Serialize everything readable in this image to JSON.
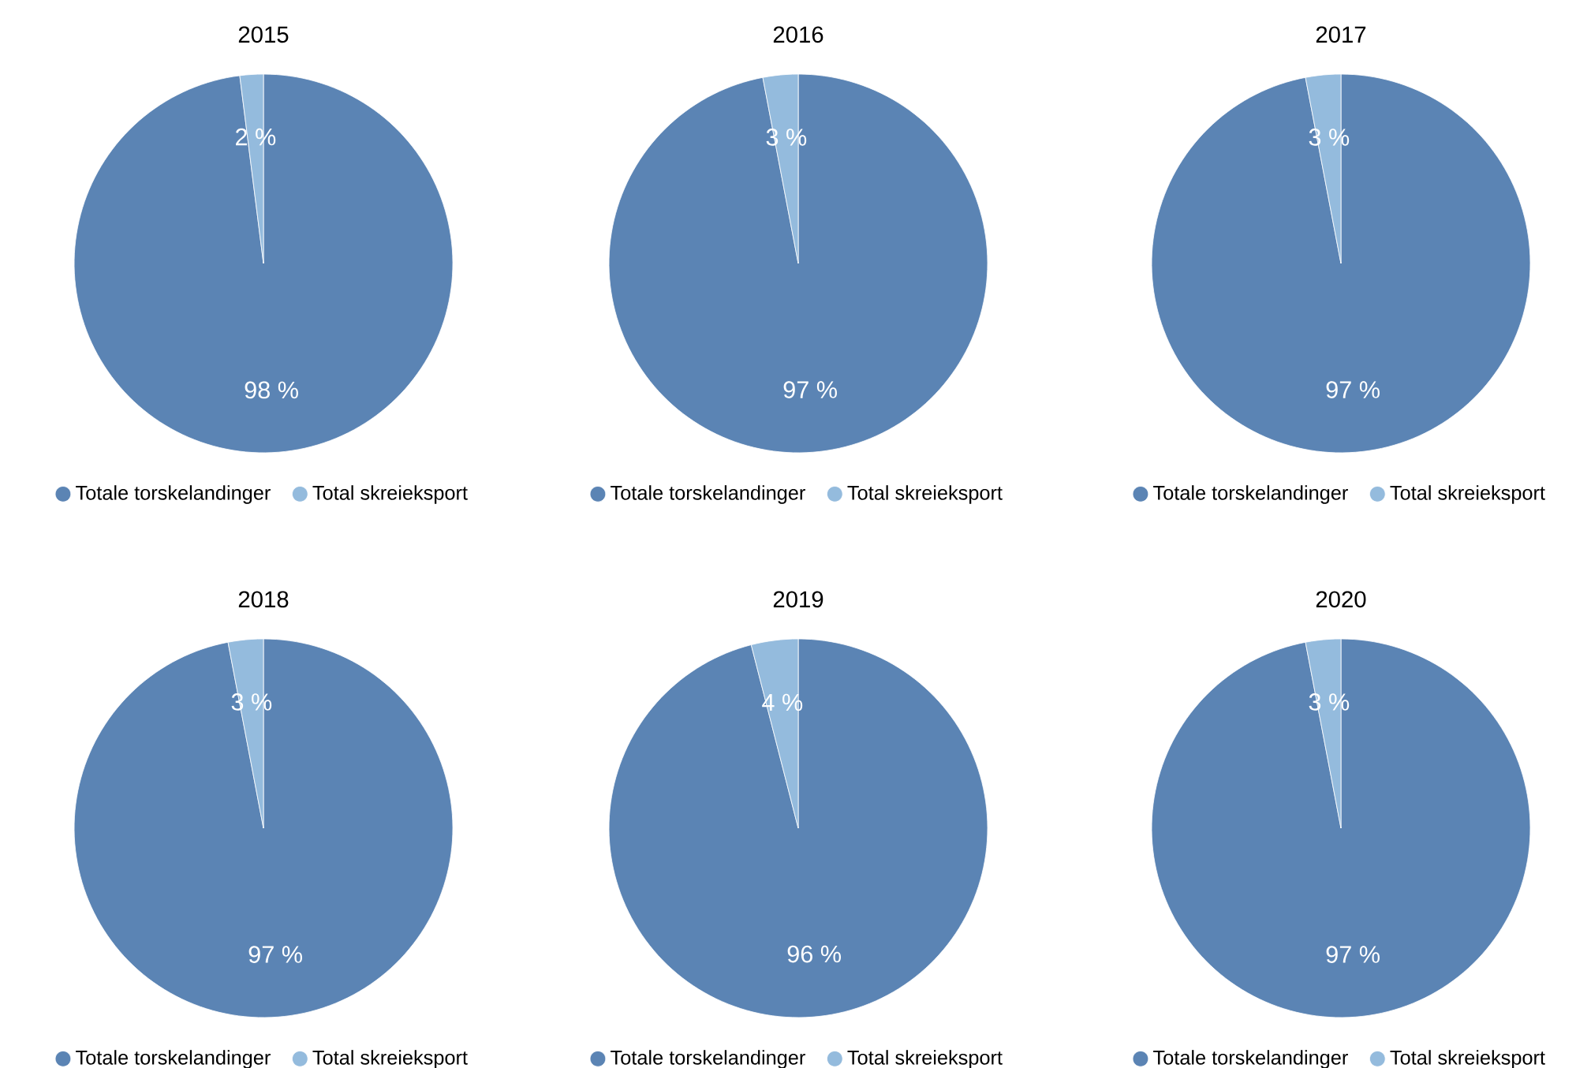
{
  "chart_data": [
    {
      "type": "pie",
      "title": "2015",
      "categories": [
        "Totale torskelandinger",
        "Total skreieksport"
      ],
      "values": [
        98,
        2
      ],
      "colors": [
        "#5b84b4",
        "#94bbdd"
      ],
      "value_labels": [
        "98 %",
        "2 %"
      ],
      "legend": "bottom"
    },
    {
      "type": "pie",
      "title": "2016",
      "categories": [
        "Totale torskelandinger",
        "Total skreieksport"
      ],
      "values": [
        97,
        3
      ],
      "colors": [
        "#5b84b4",
        "#94bbdd"
      ],
      "value_labels": [
        "97 %",
        "3 %"
      ],
      "legend": "bottom"
    },
    {
      "type": "pie",
      "title": "2017",
      "categories": [
        "Totale torskelandinger",
        "Total skreieksport"
      ],
      "values": [
        97,
        3
      ],
      "colors": [
        "#5b84b4",
        "#94bbdd"
      ],
      "value_labels": [
        "97 %",
        "3 %"
      ],
      "legend": "bottom"
    },
    {
      "type": "pie",
      "title": "2018",
      "categories": [
        "Totale torskelandinger",
        "Total skreieksport"
      ],
      "values": [
        97,
        3
      ],
      "colors": [
        "#5b84b4",
        "#94bbdd"
      ],
      "value_labels": [
        "97 %",
        "3 %"
      ],
      "legend": "bottom"
    },
    {
      "type": "pie",
      "title": "2019",
      "categories": [
        "Totale torskelandinger",
        "Total skreieksport"
      ],
      "values": [
        96,
        4
      ],
      "colors": [
        "#5b84b4",
        "#94bbdd"
      ],
      "value_labels": [
        "96 %",
        "4 %"
      ],
      "legend": "bottom"
    },
    {
      "type": "pie",
      "title": "2020",
      "categories": [
        "Totale torskelandinger",
        "Total skreieksport"
      ],
      "values": [
        97,
        3
      ],
      "colors": [
        "#5b84b4",
        "#94bbdd"
      ],
      "value_labels": [
        "97 %",
        "3 %"
      ],
      "legend": "bottom"
    }
  ]
}
